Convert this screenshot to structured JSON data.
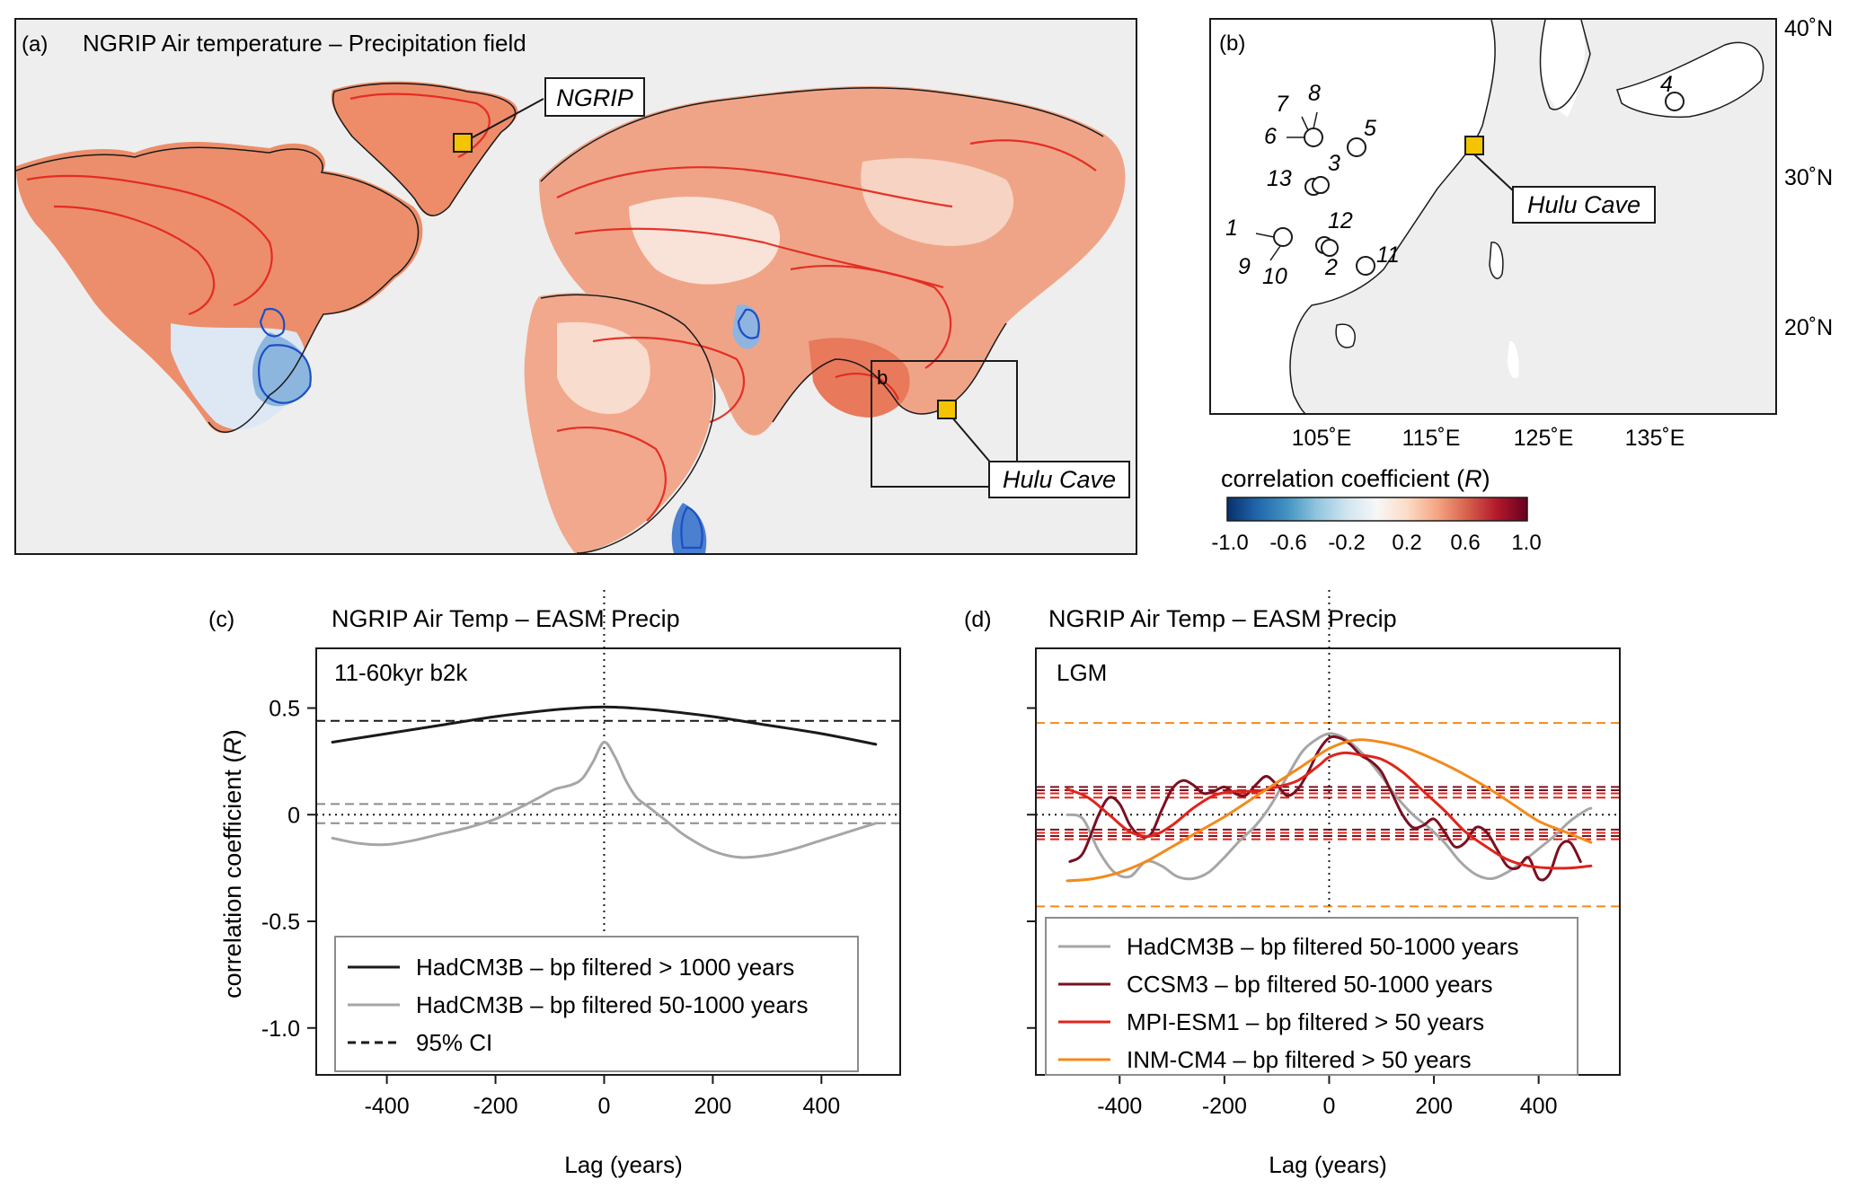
{
  "panel_a": {
    "label": "(a)",
    "title": "NGRIP Air temperature – Precipitation field",
    "callout_ngrip": "NGRIP",
    "callout_hulu": "Hulu Cave",
    "box_label": "b"
  },
  "panel_b": {
    "label": "(b)",
    "callout_hulu": "Hulu Cave",
    "lat_labels": [
      "40˚N",
      "30˚N",
      "20˚N"
    ],
    "lon_labels": [
      "105˚E",
      "115˚E",
      "125˚E",
      "135˚E"
    ],
    "sites": [
      "1",
      "2",
      "3",
      "4",
      "5",
      "6",
      "7",
      "8",
      "9",
      "10",
      "11",
      "12",
      "13"
    ]
  },
  "colorbar": {
    "title": "correlation coefficient (",
    "title_var": "R",
    "title_end": ")",
    "ticks": [
      "-1.0",
      "-0.6",
      "-0.2",
      "0.2",
      "0.6",
      "1.0"
    ],
    "colors": [
      "#08306b",
      "#2166ac",
      "#4393c3",
      "#92c5de",
      "#d1e5f0",
      "#f7f7f7",
      "#fddbc7",
      "#f4a582",
      "#d6604d",
      "#b2182b",
      "#67001f"
    ]
  },
  "chart_data": [
    {
      "panel": "(c)",
      "type": "line",
      "title": "NGRIP Air Temp – EASM Precip",
      "annotation": "11-60kyr b2k",
      "xlabel": "Lag (years)",
      "ylabel": "correlation coefficient (R)",
      "xlim": [
        -530,
        545
      ],
      "ylim": [
        -1.22,
        0.78
      ],
      "xticks": [
        -400,
        -200,
        0,
        200,
        400
      ],
      "yticks": [
        0.5,
        0,
        -0.5,
        -1.0
      ],
      "ytick_labels": [
        "0.5",
        "0",
        "-0.5",
        "-1.0"
      ],
      "series": [
        {
          "name": "HadCM3B – bp filtered > 1000 years",
          "color": "#1a1a1a",
          "dash": "solid",
          "x": [
            -500,
            -400,
            -300,
            -200,
            -100,
            -50,
            0,
            50,
            100,
            200,
            300,
            400,
            500
          ],
          "y": [
            0.34,
            0.38,
            0.42,
            0.46,
            0.49,
            0.5,
            0.505,
            0.5,
            0.49,
            0.46,
            0.42,
            0.38,
            0.33
          ]
        },
        {
          "name": "HadCM3B – bp filtered 50-1000 years",
          "color": "#a6a6a6",
          "dash": "solid",
          "x": [
            -500,
            -450,
            -400,
            -350,
            -300,
            -250,
            -200,
            -150,
            -120,
            -90,
            -60,
            -40,
            -20,
            0,
            20,
            40,
            60,
            80,
            100,
            120,
            150,
            200,
            250,
            300,
            350,
            400,
            450,
            500
          ],
          "y": [
            -0.11,
            -0.135,
            -0.14,
            -0.12,
            -0.09,
            -0.06,
            -0.02,
            0.04,
            0.08,
            0.12,
            0.14,
            0.17,
            0.25,
            0.34,
            0.27,
            0.16,
            0.08,
            0.04,
            0.0,
            -0.04,
            -0.1,
            -0.17,
            -0.2,
            -0.19,
            -0.16,
            -0.12,
            -0.08,
            -0.04
          ]
        }
      ],
      "ci_lines": [
        {
          "y": 0.44,
          "color": "#1a1a1a"
        },
        {
          "y": 0.05,
          "color": "#8c8c8c"
        },
        {
          "y": -0.04,
          "color": "#8c8c8c"
        }
      ],
      "zero_line": 0,
      "legend": [
        {
          "label": "HadCM3B – bp filtered > 1000 years",
          "color": "#1a1a1a",
          "dash": "solid"
        },
        {
          "label": "HadCM3B – bp filtered 50-1000 years",
          "color": "#a6a6a6",
          "dash": "solid"
        },
        {
          "label": "95% CI",
          "color": "#1a1a1a",
          "dash": "dashed"
        }
      ]
    },
    {
      "panel": "(d)",
      "type": "line",
      "title": "NGRIP Air Temp – EASM Precip",
      "annotation": "LGM",
      "xlabel": "Lag (years)",
      "ylim": [
        -1.22,
        0.78
      ],
      "xlim": [
        -560,
        555
      ],
      "xticks": [
        -400,
        -200,
        0,
        200,
        400
      ],
      "series": [
        {
          "name": "HadCM3B – bp filtered 50-1000 years",
          "color": "#a6a6a6",
          "x": [
            -500,
            -470,
            -440,
            -410,
            -380,
            -350,
            -320,
            -290,
            -260,
            -230,
            -200,
            -170,
            -140,
            -110,
            -80,
            -50,
            -20,
            0,
            20,
            40,
            70,
            100,
            130,
            160,
            190,
            220,
            250,
            280,
            310,
            340,
            370,
            400,
            430,
            460,
            490,
            500
          ],
          "y": [
            0.0,
            -0.02,
            -0.17,
            -0.27,
            -0.29,
            -0.22,
            -0.24,
            -0.29,
            -0.3,
            -0.27,
            -0.2,
            -0.12,
            -0.05,
            0.05,
            0.18,
            0.3,
            0.36,
            0.38,
            0.37,
            0.34,
            0.27,
            0.18,
            0.08,
            0.0,
            -0.06,
            -0.13,
            -0.22,
            -0.28,
            -0.3,
            -0.27,
            -0.22,
            -0.16,
            -0.1,
            -0.03,
            0.02,
            0.03
          ]
        },
        {
          "name": "CCSM3 – bp filtered 50-1000 years",
          "color": "#7a1020",
          "x": [
            -495,
            -470,
            -440,
            -420,
            -400,
            -380,
            -360,
            -340,
            -320,
            -300,
            -280,
            -260,
            -240,
            -220,
            -200,
            -180,
            -160,
            -140,
            -120,
            -100,
            -80,
            -60,
            -40,
            -20,
            0,
            20,
            40,
            60,
            80,
            100,
            120,
            140,
            160,
            180,
            200,
            220,
            240,
            260,
            280,
            300,
            320,
            340,
            360,
            380,
            400,
            420,
            440,
            460,
            480
          ],
          "y": [
            -0.22,
            -0.18,
            0.0,
            0.08,
            0.05,
            -0.05,
            -0.1,
            -0.09,
            0.02,
            0.12,
            0.16,
            0.14,
            0.1,
            0.11,
            0.13,
            0.1,
            0.09,
            0.14,
            0.18,
            0.14,
            0.09,
            0.12,
            0.2,
            0.3,
            0.36,
            0.36,
            0.33,
            0.28,
            0.25,
            0.2,
            0.1,
            0.0,
            -0.06,
            -0.05,
            -0.02,
            -0.08,
            -0.15,
            -0.13,
            -0.06,
            -0.08,
            -0.16,
            -0.24,
            -0.25,
            -0.2,
            -0.3,
            -0.28,
            -0.15,
            -0.13,
            -0.22
          ]
        },
        {
          "name": "MPI-ESM1 – bp filtered > 50 years",
          "color": "#e0241b",
          "x": [
            -500,
            -460,
            -420,
            -380,
            -340,
            -300,
            -260,
            -220,
            -180,
            -140,
            -100,
            -60,
            -20,
            0,
            30,
            60,
            100,
            140,
            180,
            220,
            260,
            300,
            340,
            380,
            420,
            460,
            500
          ],
          "y": [
            0.12,
            0.08,
            0.0,
            -0.08,
            -0.1,
            -0.05,
            0.03,
            0.09,
            0.11,
            0.11,
            0.13,
            0.16,
            0.23,
            0.27,
            0.29,
            0.28,
            0.26,
            0.2,
            0.11,
            0.02,
            -0.08,
            -0.15,
            -0.21,
            -0.24,
            -0.25,
            -0.25,
            -0.24
          ]
        },
        {
          "name": "INM-CM4 – bp filtered > 50 years",
          "color": "#f28a1b",
          "x": [
            -500,
            -450,
            -400,
            -350,
            -300,
            -250,
            -200,
            -150,
            -100,
            -50,
            0,
            50,
            100,
            150,
            200,
            250,
            300,
            350,
            400,
            450,
            500
          ],
          "y": [
            -0.31,
            -0.3,
            -0.27,
            -0.22,
            -0.15,
            -0.08,
            -0.01,
            0.07,
            0.15,
            0.23,
            0.31,
            0.35,
            0.34,
            0.31,
            0.26,
            0.2,
            0.13,
            0.05,
            -0.03,
            -0.08,
            -0.13
          ]
        }
      ],
      "ci_lines": [
        {
          "y": 0.43,
          "color": "#f28a1b"
        },
        {
          "y": -0.43,
          "color": "#f28a1b"
        },
        {
          "y": 0.13,
          "color": "#7a1020"
        },
        {
          "y": 0.115,
          "color": "#7a1020"
        },
        {
          "y": 0.1,
          "color": "#e0241b"
        },
        {
          "y": 0.08,
          "color": "#e0241b"
        },
        {
          "y": -0.07,
          "color": "#7a1020"
        },
        {
          "y": -0.085,
          "color": "#e0241b"
        },
        {
          "y": -0.1,
          "color": "#7a1020"
        },
        {
          "y": -0.115,
          "color": "#e0241b"
        }
      ],
      "zero_line": 0,
      "legend": [
        {
          "label": "HadCM3B – bp filtered 50-1000 years",
          "color": "#a6a6a6"
        },
        {
          "label": "CCSM3 – bp filtered 50-1000 years",
          "color": "#7a1020"
        },
        {
          "label": "MPI-ESM1 – bp filtered > 50 years",
          "color": "#e0241b"
        },
        {
          "label": "INM-CM4 – bp filtered > 50 years",
          "color": "#f28a1b"
        }
      ]
    }
  ]
}
